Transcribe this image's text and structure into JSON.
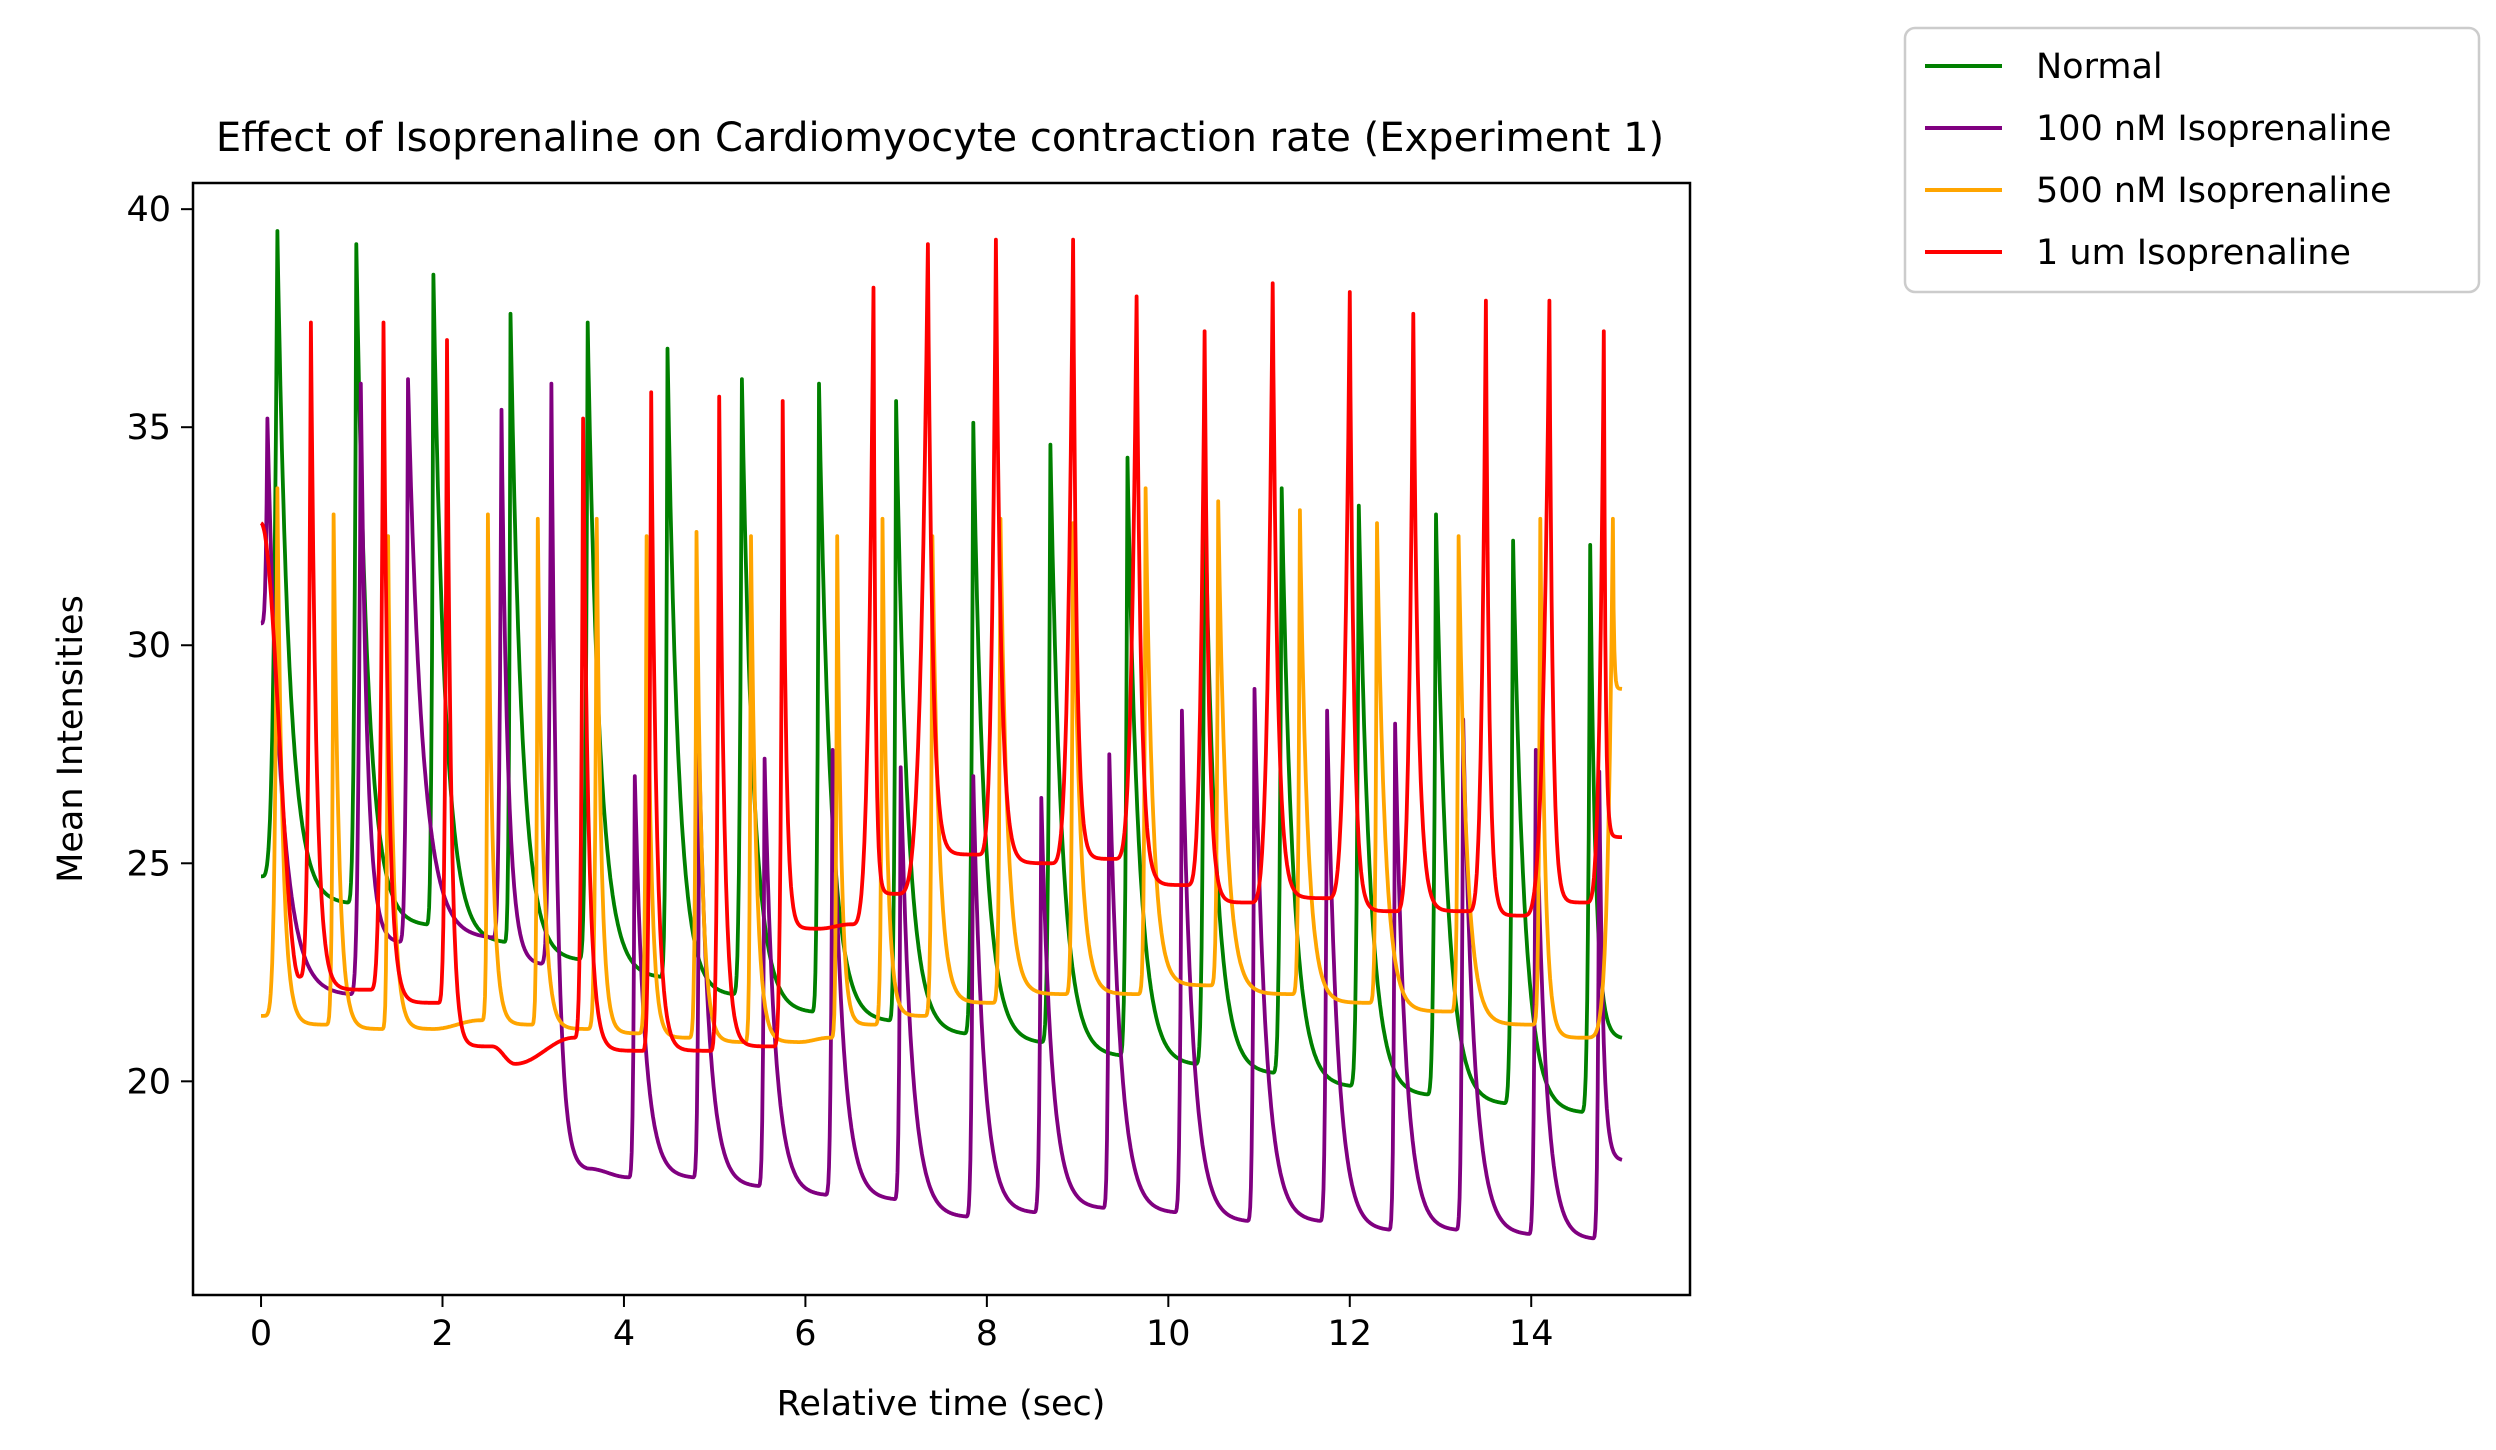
{
  "chart_data": {
    "type": "line",
    "title": "Effect of Isoprenaline on Cardiomyocyte contraction rate (Experiment 1)",
    "xlabel": "Relative time (sec)",
    "ylabel": "Mean Intensities",
    "xlim": [
      -0.75,
      15.75
    ],
    "ylim": [
      15.1,
      40.6
    ],
    "xticks": [
      0,
      2,
      4,
      6,
      8,
      10,
      12,
      14
    ],
    "yticks": [
      20,
      25,
      30,
      35,
      40
    ],
    "grid": false,
    "legend_position": "outside-top-right",
    "x_range": [
      0,
      15
    ],
    "series": [
      {
        "name": "Normal",
        "color": "#008000",
        "start": 24.7,
        "end": 21.0,
        "shape": "rapid",
        "peaks": [
          [
            0.18,
            39.5
          ],
          [
            1.05,
            39.2
          ],
          [
            1.9,
            38.5
          ],
          [
            2.75,
            37.6
          ],
          [
            3.6,
            37.4
          ],
          [
            4.48,
            36.8
          ],
          [
            5.3,
            36.1
          ],
          [
            6.15,
            36.0
          ],
          [
            7.0,
            35.6
          ],
          [
            7.85,
            35.1
          ],
          [
            8.7,
            34.6
          ],
          [
            9.55,
            34.3
          ],
          [
            10.4,
            33.9
          ],
          [
            11.25,
            33.6
          ],
          [
            12.1,
            33.2
          ],
          [
            12.95,
            33.0
          ],
          [
            13.8,
            32.4
          ],
          [
            14.65,
            32.3
          ]
        ],
        "troughs": [
          [
            0.0,
            24.7
          ],
          [
            0.95,
            24.1
          ],
          [
            1.82,
            23.6
          ],
          [
            2.68,
            23.2
          ],
          [
            3.5,
            22.8
          ],
          [
            4.4,
            22.4
          ],
          [
            5.2,
            22.0
          ],
          [
            6.07,
            21.6
          ],
          [
            6.92,
            21.4
          ],
          [
            7.75,
            21.1
          ],
          [
            8.6,
            20.9
          ],
          [
            9.46,
            20.6
          ],
          [
            10.3,
            20.4
          ],
          [
            11.15,
            20.2
          ],
          [
            12.0,
            19.9
          ],
          [
            12.85,
            19.7
          ],
          [
            13.7,
            19.5
          ],
          [
            14.55,
            19.3
          ]
        ]
      },
      {
        "name": "100 nM Isoprenaline",
        "color": "#800080",
        "start": 30.5,
        "end": 18.2,
        "shape": "rapid",
        "peaks": [
          [
            0.07,
            35.2
          ],
          [
            1.1,
            36.0
          ],
          [
            1.62,
            36.1
          ],
          [
            2.65,
            35.4
          ],
          [
            3.2,
            36.0
          ],
          [
            4.12,
            27.0
          ],
          [
            4.83,
            27.5
          ],
          [
            5.55,
            27.4
          ],
          [
            6.3,
            27.6
          ],
          [
            7.05,
            27.2
          ],
          [
            7.85,
            27.0
          ],
          [
            8.6,
            26.5
          ],
          [
            9.35,
            27.5
          ],
          [
            10.15,
            28.5
          ],
          [
            10.95,
            29.0
          ],
          [
            11.75,
            28.5
          ],
          [
            12.5,
            28.2
          ],
          [
            13.25,
            28.3
          ],
          [
            14.05,
            27.6
          ],
          [
            14.75,
            27.1
          ]
        ],
        "troughs": [
          [
            0.0,
            30.5
          ],
          [
            0.98,
            22.0
          ],
          [
            1.52,
            23.2
          ],
          [
            2.55,
            23.3
          ],
          [
            3.08,
            22.7
          ],
          [
            3.6,
            18.0
          ],
          [
            4.05,
            17.8
          ],
          [
            4.76,
            17.8
          ],
          [
            5.48,
            17.6
          ],
          [
            6.22,
            17.4
          ],
          [
            6.98,
            17.3
          ],
          [
            7.77,
            16.9
          ],
          [
            8.52,
            17.0
          ],
          [
            9.28,
            17.1
          ],
          [
            10.07,
            17.0
          ],
          [
            10.87,
            16.8
          ],
          [
            11.67,
            16.8
          ],
          [
            12.43,
            16.6
          ],
          [
            13.17,
            16.6
          ],
          [
            13.97,
            16.5
          ],
          [
            14.68,
            16.4
          ]
        ]
      },
      {
        "name": "500 nM Isoprenaline",
        "color": "#FFA500",
        "start": 21.5,
        "end": 29.0,
        "shape": "blunt",
        "peaks": [
          [
            0.18,
            33.6
          ],
          [
            0.8,
            33.0
          ],
          [
            1.4,
            32.5
          ],
          [
            2.5,
            33.0
          ],
          [
            3.05,
            32.9
          ],
          [
            3.7,
            32.9
          ],
          [
            4.25,
            32.5
          ],
          [
            4.8,
            32.6
          ],
          [
            5.4,
            32.5
          ],
          [
            6.35,
            32.5
          ],
          [
            6.85,
            32.9
          ],
          [
            7.4,
            32.5
          ],
          [
            8.15,
            32.9
          ],
          [
            8.95,
            32.8
          ],
          [
            9.75,
            33.6
          ],
          [
            10.55,
            33.3
          ],
          [
            11.45,
            33.1
          ],
          [
            12.3,
            32.8
          ],
          [
            13.2,
            32.5
          ],
          [
            14.1,
            32.9
          ],
          [
            14.9,
            32.9
          ]
        ],
        "troughs": [
          [
            0.0,
            21.5
          ],
          [
            0.7,
            21.3
          ],
          [
            1.32,
            21.2
          ],
          [
            1.9,
            21.2
          ],
          [
            2.42,
            21.4
          ],
          [
            2.97,
            21.3
          ],
          [
            3.58,
            21.2
          ],
          [
            4.15,
            21.1
          ],
          [
            4.7,
            21.0
          ],
          [
            5.32,
            20.9
          ],
          [
            5.93,
            20.9
          ],
          [
            6.27,
            21.0
          ],
          [
            6.75,
            21.3
          ],
          [
            7.3,
            21.5
          ],
          [
            8.05,
            21.8
          ],
          [
            8.85,
            22.0
          ],
          [
            9.65,
            22.0
          ],
          [
            10.45,
            22.2
          ],
          [
            11.35,
            22.0
          ],
          [
            12.2,
            21.8
          ],
          [
            13.1,
            21.6
          ],
          [
            14.0,
            21.3
          ],
          [
            14.55,
            21.0
          ]
        ]
      },
      {
        "name": "1 um Isoprenaline",
        "color": "#FF0000",
        "start": 32.8,
        "end": 25.6,
        "shape": "sharp",
        "peaks": [
          [
            0.55,
            37.4
          ],
          [
            1.35,
            37.4
          ],
          [
            2.05,
            37.0
          ],
          [
            3.55,
            35.2
          ],
          [
            4.3,
            35.8
          ],
          [
            5.05,
            35.7
          ],
          [
            5.75,
            35.6
          ],
          [
            6.75,
            38.2
          ],
          [
            7.35,
            39.2
          ],
          [
            8.1,
            39.3
          ],
          [
            8.95,
            39.3
          ],
          [
            9.65,
            38.0
          ],
          [
            10.4,
            37.2
          ],
          [
            11.15,
            38.3
          ],
          [
            12.0,
            38.1
          ],
          [
            12.7,
            37.6
          ],
          [
            13.5,
            37.9
          ],
          [
            14.2,
            37.9
          ],
          [
            14.8,
            37.2
          ]
        ],
        "troughs": [
          [
            0.0,
            32.8
          ],
          [
            0.42,
            22.4
          ],
          [
            1.2,
            22.1
          ],
          [
            1.95,
            21.8
          ],
          [
            2.55,
            20.8
          ],
          [
            2.8,
            20.4
          ],
          [
            3.45,
            21.0
          ],
          [
            4.2,
            20.7
          ],
          [
            4.95,
            20.7
          ],
          [
            5.65,
            20.8
          ],
          [
            6.15,
            23.5
          ],
          [
            6.5,
            23.6
          ],
          [
            7.0,
            24.3
          ],
          [
            7.9,
            25.2
          ],
          [
            8.7,
            25.0
          ],
          [
            9.4,
            25.1
          ],
          [
            10.2,
            24.5
          ],
          [
            10.9,
            24.1
          ],
          [
            11.75,
            24.2
          ],
          [
            12.5,
            23.9
          ],
          [
            13.3,
            23.9
          ],
          [
            13.9,
            23.8
          ],
          [
            14.6,
            24.1
          ]
        ]
      }
    ]
  }
}
